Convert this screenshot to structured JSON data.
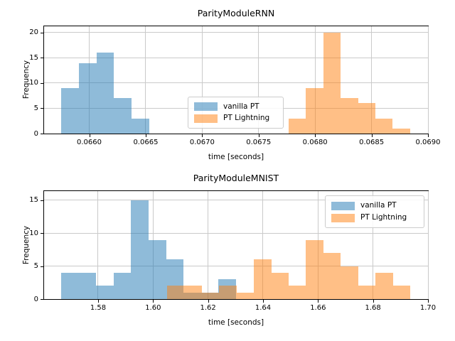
{
  "figure": {
    "background": "#ffffff",
    "grid_color": "#cacaca",
    "spine_color": "#000000",
    "legend_border_color": "#cccccc",
    "overlap_color_on_white": "#c79d73"
  },
  "chart_data": [
    {
      "type": "bar",
      "subtype": "histogram",
      "title": "ParityModuleRNN",
      "xlabel": "time [seconds]",
      "ylabel": "Frequency",
      "grid": true,
      "xlim": [
        0.0656,
        0.069
      ],
      "ylim": [
        0,
        21.25
      ],
      "xticks": {
        "values": [
          0.066,
          0.0665,
          0.067,
          0.0675,
          0.068,
          0.0685,
          0.069
        ],
        "labels": [
          "0.0660",
          "0.0665",
          "0.0670",
          "0.0675",
          "0.0680",
          "0.0685",
          "0.0690"
        ]
      },
      "yticks": {
        "values": [
          0,
          5,
          10,
          15,
          20
        ],
        "labels": [
          "0",
          "5",
          "10",
          "15",
          "20"
        ]
      },
      "series": [
        {
          "name": "vanilla PT",
          "color": "rgba(31,119,180,0.5)",
          "color_on_white": "#8fbbd9",
          "bin_start": 0.065751,
          "bin_width": 0.00015625,
          "counts": [
            9,
            14,
            16,
            7,
            3
          ]
        },
        {
          "name": "PT Lightning",
          "color": "rgba(255,127,14,0.5)",
          "color_on_white": "#ffbf86",
          "bin_start": 0.067766,
          "bin_width": 0.0001536,
          "counts": [
            3,
            9,
            20,
            7,
            6,
            3,
            1
          ]
        }
      ],
      "legend": {
        "position": "center-bottom",
        "entries": [
          "vanilla PT",
          "PT Lightning"
        ]
      }
    },
    {
      "type": "bar",
      "subtype": "histogram",
      "title": "ParityModuleMNIST",
      "xlabel": "time [seconds]",
      "ylabel": "Frequency",
      "grid": true,
      "xlim": [
        1.560345,
        1.7
      ],
      "ylim": [
        0,
        16.4
      ],
      "xticks": {
        "values": [
          1.58,
          1.6,
          1.62,
          1.64,
          1.66,
          1.68,
          1.7
        ],
        "labels": [
          "1.58",
          "1.60",
          "1.62",
          "1.64",
          "1.66",
          "1.68",
          "1.70"
        ]
      },
      "yticks": {
        "values": [
          0,
          5,
          10,
          15
        ],
        "labels": [
          "0",
          "5",
          "10",
          "15"
        ]
      },
      "series": [
        {
          "name": "vanilla PT",
          "color": "rgba(31,119,180,0.5)",
          "color_on_white": "#8fbbd9",
          "bin_start": 1.566552,
          "bin_width": 0.00636,
          "counts": [
            4,
            4,
            2,
            4,
            15,
            9,
            6,
            1,
            1,
            3
          ]
        },
        {
          "name": "PT Lightning",
          "color": "rgba(255,127,14,0.5)",
          "color_on_white": "#ffbf86",
          "bin_start": 1.605086,
          "bin_width": 0.006318,
          "counts": [
            2,
            2,
            1,
            2,
            1,
            6,
            4,
            2,
            9,
            7,
            5,
            2,
            4,
            2
          ]
        }
      ],
      "legend": {
        "position": "upper-right",
        "entries": [
          "vanilla PT",
          "PT Lightning"
        ]
      }
    }
  ]
}
